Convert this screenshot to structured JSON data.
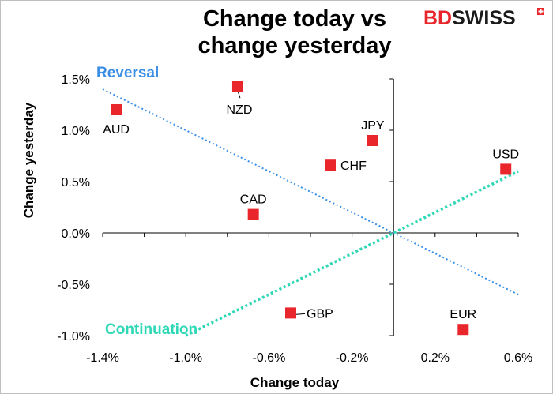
{
  "chart_data": {
    "type": "scatter",
    "title_lines": [
      "Change today vs",
      "change yesterday"
    ],
    "xlabel": "Change today",
    "ylabel": "Change yesterday",
    "xlim": [
      -1.4,
      0.6
    ],
    "ylim": [
      -1.0,
      1.5
    ],
    "x_ticks": [
      {
        "value": -1.4,
        "label": "-1.4%"
      },
      {
        "value": -1.0,
        "label": "-1.0%"
      },
      {
        "value": -0.6,
        "label": "-0.6%"
      },
      {
        "value": -0.2,
        "label": "-0.2%"
      },
      {
        "value": 0.2,
        "label": "0.2%"
      },
      {
        "value": 0.6,
        "label": "0.6%"
      }
    ],
    "x_minor_ticks": [
      -1.2,
      -0.8,
      -0.4,
      0.0,
      0.4
    ],
    "y_ticks": [
      {
        "value": 1.5,
        "label": "1.5%"
      },
      {
        "value": 1.0,
        "label": "1.0%"
      },
      {
        "value": 0.5,
        "label": "0.5%"
      },
      {
        "value": 0.0,
        "label": "0.0%"
      },
      {
        "value": -0.5,
        "label": "-0.5%"
      },
      {
        "value": -1.0,
        "label": "-1.0%"
      }
    ],
    "points": [
      {
        "label": "AUD",
        "x": -1.335,
        "y": 1.2,
        "label_pos": "below"
      },
      {
        "label": "NZD",
        "x": -0.75,
        "y": 1.43,
        "label_pos": "below-leader"
      },
      {
        "label": "JPY",
        "x": -0.1,
        "y": 0.9,
        "label_pos": "above"
      },
      {
        "label": "CHF",
        "x": -0.305,
        "y": 0.66,
        "label_pos": "right"
      },
      {
        "label": "USD",
        "x": 0.54,
        "y": 0.62,
        "label_pos": "above"
      },
      {
        "label": "CAD",
        "x": -0.675,
        "y": 0.18,
        "label_pos": "above"
      },
      {
        "label": "GBP",
        "x": -0.495,
        "y": -0.78,
        "label_pos": "right-leader"
      },
      {
        "label": "EUR",
        "x": 0.335,
        "y": -0.94,
        "label_pos": "above"
      }
    ],
    "reference_lines": [
      {
        "name": "Reversal",
        "slope": -1,
        "x_range": [
          -1.4,
          0.6
        ],
        "color": "#3a8ee6"
      },
      {
        "name": "Continuation",
        "slope": 1,
        "x_range": [
          -1.0,
          0.6
        ],
        "color": "#2ed8b6"
      }
    ],
    "annotations": {
      "reversal": "Reversal",
      "continuation": "Continuation"
    },
    "colors": {
      "marker": "#e8262b",
      "reversal": "#3a8ee6",
      "continuation": "#2ed8b6",
      "axis": "#000000"
    }
  },
  "brand": {
    "part1": "BD",
    "part2": "SWISS",
    "color_bd": "#e8262b",
    "color_swiss": "#1a1a1a"
  }
}
